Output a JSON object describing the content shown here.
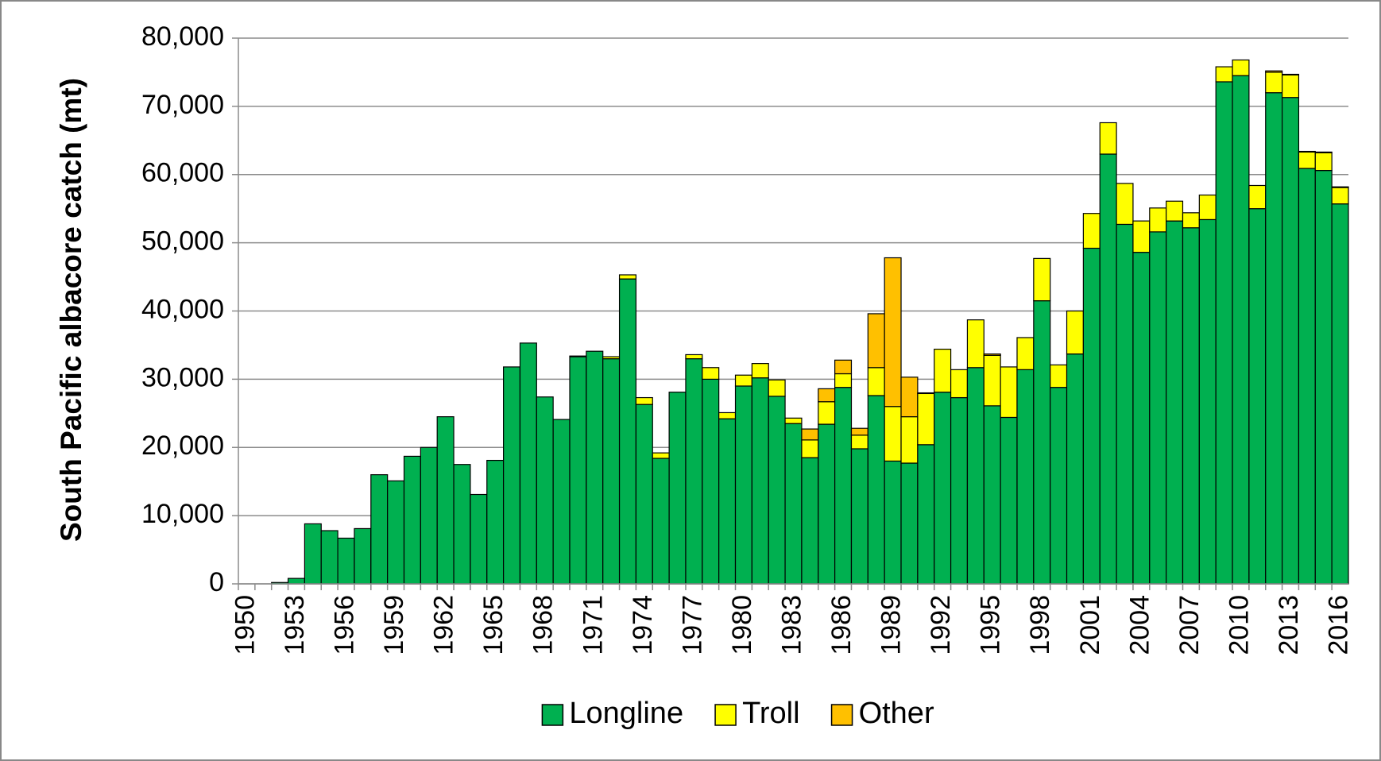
{
  "chart_data": {
    "type": "stacked_bar",
    "y_label": "South Pacific albacore catch (mt)",
    "categories": [
      "1950",
      null,
      null,
      "1953",
      null,
      null,
      "1956",
      null,
      null,
      "1959",
      null,
      null,
      "1962",
      null,
      null,
      "1965",
      null,
      null,
      "1968",
      null,
      null,
      "1971",
      null,
      null,
      "1974",
      null,
      null,
      "1977",
      null,
      null,
      "1980",
      null,
      null,
      "1983",
      null,
      null,
      "1986",
      null,
      null,
      "1989",
      null,
      null,
      "1992",
      null,
      null,
      "1995",
      null,
      null,
      "1998",
      null,
      null,
      "2001",
      null,
      null,
      "2004",
      null,
      null,
      "2007",
      null,
      null,
      "2010",
      null,
      null,
      "2013",
      null,
      null,
      "2016"
    ],
    "series": [
      {
        "name": "Longline",
        "color": "#00b050",
        "values": [
          0,
          0,
          200,
          800,
          8800,
          7800,
          6700,
          8100,
          16000,
          15100,
          18700,
          20000,
          24500,
          17500,
          13100,
          18100,
          31800,
          35300,
          27400,
          24100,
          33300,
          34100,
          33000,
          44700,
          26300,
          18400,
          28100,
          33000,
          30000,
          24200,
          29000,
          30200,
          27500,
          23500,
          18500,
          23400,
          28800,
          19800,
          27600,
          18000,
          17700,
          20400,
          28100,
          27300,
          31700,
          26100,
          24400,
          31400,
          41500,
          28800,
          33700,
          49200,
          63000,
          52700,
          48600,
          51600,
          53200,
          52200,
          53400,
          73600,
          74500,
          55000,
          72000,
          71300,
          60900,
          60600,
          55700
        ]
      },
      {
        "name": "Troll",
        "color": "#ffff00",
        "values": [
          0,
          0,
          0,
          0,
          0,
          0,
          0,
          0,
          0,
          0,
          0,
          0,
          0,
          0,
          0,
          0,
          0,
          0,
          0,
          0,
          100,
          0,
          300,
          600,
          1000,
          800,
          0,
          600,
          1700,
          900,
          1600,
          2100,
          2400,
          800,
          2600,
          3300,
          2000,
          2000,
          4100,
          8000,
          6800,
          7500,
          6300,
          4100,
          7000,
          7400,
          7400,
          4700,
          6200,
          3300,
          6300,
          5100,
          4600,
          6000,
          4600,
          3500,
          2900,
          2200,
          3600,
          2200,
          2300,
          3400,
          3000,
          3300,
          2400,
          2600,
          2400
        ]
      },
      {
        "name": "Other",
        "color": "#ffc000",
        "values": [
          0,
          0,
          0,
          0,
          0,
          0,
          0,
          0,
          0,
          0,
          0,
          0,
          0,
          0,
          0,
          0,
          0,
          0,
          0,
          0,
          0,
          0,
          0,
          0,
          0,
          0,
          0,
          0,
          0,
          0,
          0,
          0,
          0,
          0,
          1600,
          1900,
          2000,
          1000,
          7900,
          21800,
          5800,
          100,
          0,
          0,
          0,
          200,
          0,
          0,
          0,
          0,
          0,
          0,
          0,
          0,
          0,
          0,
          0,
          0,
          0,
          0,
          0,
          0,
          200,
          100,
          100,
          100,
          100
        ]
      }
    ],
    "ylim": [
      0,
      80000
    ],
    "yticks": [
      0,
      {
        "value": 10000,
        "label": "10,000"
      },
      {
        "value": 20000,
        "label": "20,000"
      },
      {
        "value": 30000,
        "label": "30,000"
      },
      {
        "value": 40000,
        "label": "40,000"
      },
      {
        "value": 50000,
        "label": "50,000"
      },
      {
        "value": 60000,
        "label": "60,000"
      },
      {
        "value": 70000,
        "label": "70,000"
      },
      {
        "value": 80000,
        "label": "80,000"
      }
    ],
    "grid": true,
    "legend": "bottom"
  }
}
